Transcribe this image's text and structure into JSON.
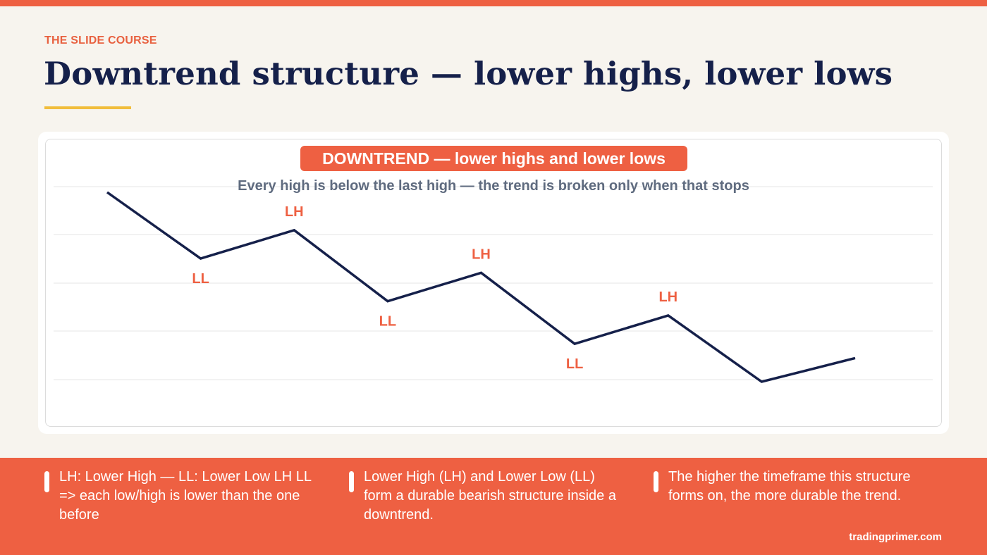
{
  "slide": {
    "kicker": "THE SLIDE COURSE",
    "title": "Downtrend structure — lower highs, lower lows"
  },
  "colors": {
    "accent": "#ee6042",
    "navy": "#15204a",
    "gold": "#f1bd3b",
    "background": "#f7f4ee"
  },
  "chart_data": {
    "type": "line",
    "title": "DOWNTREND — lower highs and lower lows",
    "subtitle": "Every high is below the last high — the trend is broken only when that stops",
    "xlabel": "",
    "ylabel": "",
    "grid": true,
    "x": [
      0,
      1,
      2,
      3,
      4,
      5,
      6,
      7,
      8
    ],
    "series": [
      {
        "values": [
          100,
          72,
          84,
          54,
          66,
          36,
          48,
          20,
          30
        ]
      }
    ],
    "annotations": [
      {
        "x": 1,
        "label": "LL",
        "position": "below"
      },
      {
        "x": 2,
        "label": "LH",
        "position": "above"
      },
      {
        "x": 3,
        "label": "LL",
        "position": "below"
      },
      {
        "x": 4,
        "label": "LH",
        "position": "above"
      },
      {
        "x": 5,
        "label": "LL",
        "position": "below"
      },
      {
        "x": 6,
        "label": "LH",
        "position": "above"
      }
    ]
  },
  "footer": {
    "notes": [
      "LH: Lower High — LL: Lower Low LH LL => each low/high is lower than the one before",
      "Lower High (LH) and Lower Low (LL) form a durable bearish structure inside a downtrend.",
      "The higher the timeframe this structure forms on, the more durable the trend."
    ],
    "brand": "tradingprimer.com"
  }
}
